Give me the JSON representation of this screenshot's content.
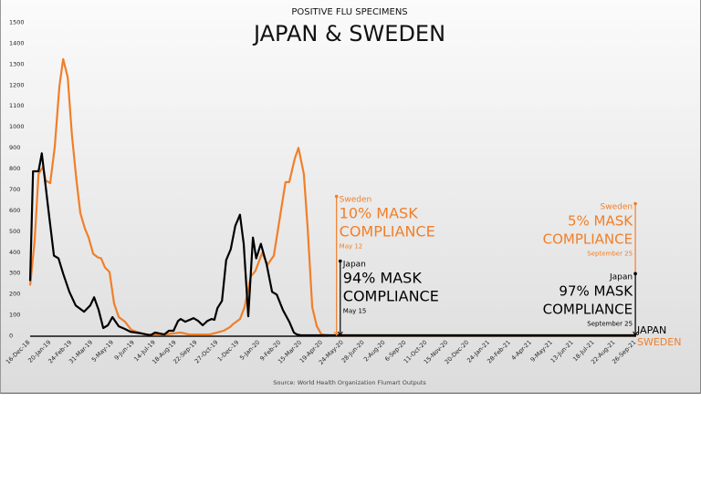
{
  "chart_data": {
    "type": "line",
    "subtitle": "POSITIVE FLU SPECIMENS",
    "title": "JAPAN & SWEDEN",
    "source": "Source: World Health Organization Flumart Outputs",
    "x_unit": "weeks since 16-Dec-18",
    "x_range": [
      0,
      145
    ],
    "ylim": [
      0,
      1500
    ],
    "yticks": [
      0,
      100,
      200,
      300,
      400,
      500,
      600,
      700,
      800,
      900,
      1000,
      1100,
      1200,
      1300,
      1400,
      1500
    ],
    "xtick_step_weeks": 5,
    "xtick_labels": [
      "16-Dec-18",
      "20-Jan-19",
      "24-Feb-19",
      "31-Mar-19",
      "5-May-19",
      "9-Jun-19",
      "14-Jul-19",
      "18-Aug-19",
      "22-Sep-19",
      "27-Oct-19",
      "1-Dec-19",
      "5-Jan-20",
      "9-Feb-20",
      "15-Mar-20",
      "19-Apr-20",
      "24-May-20",
      "28-Jun-20",
      "2-Aug-20",
      "6-Sep-20",
      "11-Oct-20",
      "15-Nov-20",
      "20-Dec-20",
      "24-Jan-21",
      "28-Feb-21",
      "4-Apr-21",
      "9-May-21",
      "13-Jun-21",
      "18-Jul-21",
      "22-Aug-21",
      "26-Sep-21"
    ],
    "colors": {
      "Japan": "#000000",
      "Sweden": "#f07f2a"
    },
    "series": [
      {
        "name": "Sweden",
        "label": "SWEDEN",
        "points": [
          [
            0,
            238
          ],
          [
            1.1,
            455
          ],
          [
            2,
            772
          ],
          [
            3.1,
            806
          ],
          [
            3.7,
            741
          ],
          [
            4.8,
            728
          ],
          [
            5.9,
            902
          ],
          [
            7,
            1192
          ],
          [
            7.9,
            1322
          ],
          [
            9,
            1235
          ],
          [
            10,
            958
          ],
          [
            11.1,
            741
          ],
          [
            12,
            585
          ],
          [
            13.1,
            511
          ],
          [
            14,
            468
          ],
          [
            15.1,
            390
          ],
          [
            16.2,
            373
          ],
          [
            17,
            368
          ],
          [
            17.9,
            325
          ],
          [
            19,
            303
          ],
          [
            20.1,
            152
          ],
          [
            21.2,
            87
          ],
          [
            22.7,
            65
          ],
          [
            24.2,
            26
          ],
          [
            26,
            13
          ],
          [
            27.7,
            4
          ],
          [
            32.1,
            4
          ],
          [
            36,
            13
          ],
          [
            38,
            4
          ],
          [
            43,
            4
          ],
          [
            46.3,
            22
          ],
          [
            47.8,
            39
          ],
          [
            48.7,
            56
          ],
          [
            50.2,
            78
          ],
          [
            51.3,
            134
          ],
          [
            52.8,
            282
          ],
          [
            53.9,
            308
          ],
          [
            55.5,
            394
          ],
          [
            56.8,
            338
          ],
          [
            58.3,
            381
          ],
          [
            59.8,
            568
          ],
          [
            61.1,
            733
          ],
          [
            62,
            733
          ],
          [
            63.3,
            845
          ],
          [
            64.2,
            897
          ],
          [
            65.5,
            772
          ],
          [
            66.4,
            511
          ],
          [
            67.5,
            134
          ],
          [
            68.6,
            43
          ],
          [
            69.7,
            4
          ],
          [
            71.4,
            0
          ],
          [
            145,
            0
          ]
        ]
      },
      {
        "name": "Japan",
        "label": "JAPAN",
        "points": [
          [
            0,
            260
          ],
          [
            0.7,
            785
          ],
          [
            2,
            785
          ],
          [
            2.8,
            871
          ],
          [
            4.4,
            598
          ],
          [
            5.7,
            381
          ],
          [
            6.8,
            368
          ],
          [
            7.9,
            295
          ],
          [
            9.4,
            208
          ],
          [
            10.9,
            143
          ],
          [
            12.9,
            113
          ],
          [
            14.4,
            143
          ],
          [
            15.3,
            182
          ],
          [
            16.4,
            121
          ],
          [
            17.5,
            35
          ],
          [
            18.6,
            48
          ],
          [
            19.7,
            87
          ],
          [
            21.2,
            43
          ],
          [
            22.7,
            30
          ],
          [
            24,
            17
          ],
          [
            26.6,
            9
          ],
          [
            28.8,
            0
          ],
          [
            29.9,
            13
          ],
          [
            32.1,
            4
          ],
          [
            33.2,
            22
          ],
          [
            34.3,
            22
          ],
          [
            35.4,
            69
          ],
          [
            36,
            78
          ],
          [
            37.1,
            65
          ],
          [
            39.1,
            82
          ],
          [
            40.2,
            69
          ],
          [
            41.3,
            48
          ],
          [
            42.4,
            69
          ],
          [
            43.4,
            78
          ],
          [
            44.1,
            74
          ],
          [
            44.8,
            130
          ],
          [
            45.9,
            165
          ],
          [
            46.9,
            360
          ],
          [
            48,
            412
          ],
          [
            49.1,
            524
          ],
          [
            50.2,
            577
          ],
          [
            51.1,
            438
          ],
          [
            52.2,
            91
          ],
          [
            53.3,
            468
          ],
          [
            54.1,
            368
          ],
          [
            55.2,
            438
          ],
          [
            56.6,
            338
          ],
          [
            57.9,
            208
          ],
          [
            59,
            195
          ],
          [
            60.5,
            121
          ],
          [
            62,
            65
          ],
          [
            63.1,
            13
          ],
          [
            63.8,
            4
          ],
          [
            64.8,
            0
          ],
          [
            145,
            0
          ]
        ]
      }
    ],
    "annotations": [
      {
        "series": "Sweden",
        "week": 73.3,
        "top_value": 665,
        "country": "Sweden",
        "line1": "10% MASK",
        "line2": "COMPLIANCE",
        "date": "May 12"
      },
      {
        "series": "Japan",
        "week": 74.2,
        "top_value": 355,
        "country": "Japan",
        "line1": "94% MASK",
        "line2": "COMPLIANCE",
        "date": "May 15"
      },
      {
        "series": "Sweden",
        "week": 144.8,
        "top_value": 630,
        "country": "Sweden",
        "line1": "5% MASK",
        "line2": "COMPLIANCE",
        "date": "September 25"
      },
      {
        "series": "Japan",
        "week": 144.8,
        "top_value": 295,
        "country": "Japan",
        "line1": "97% MASK",
        "line2": "COMPLIANCE",
        "date": "September 25"
      }
    ]
  }
}
